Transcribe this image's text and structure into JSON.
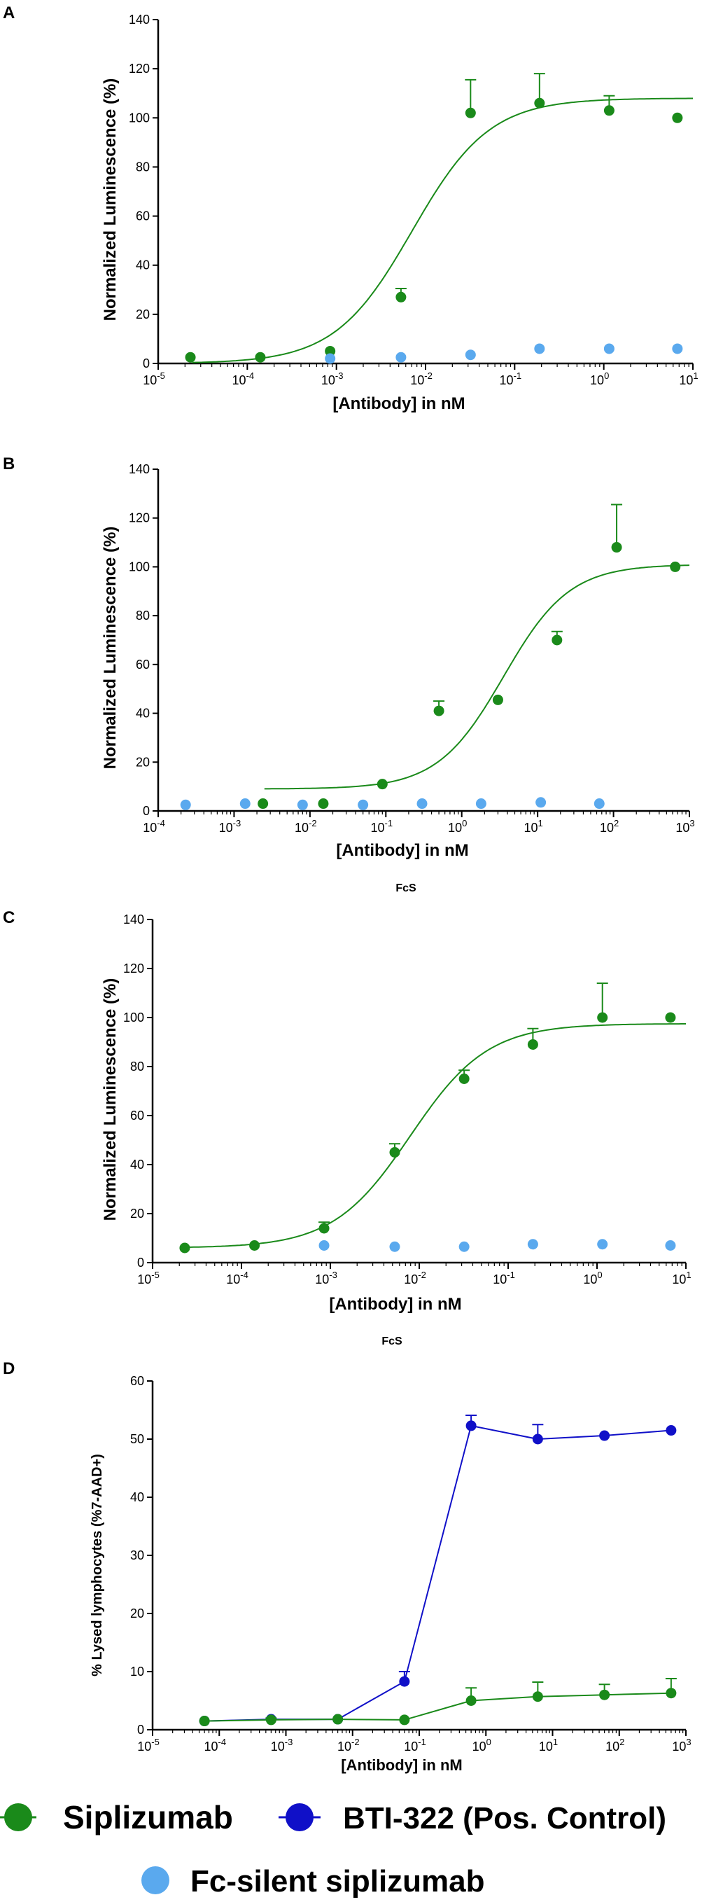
{
  "colors": {
    "siplizumab": "#1a8a1a",
    "fc_silent": "#5aa9ee",
    "bti322": "#1010c8",
    "axis": "#000000"
  },
  "chart_data": [
    {
      "panel": "A",
      "type": "scatter",
      "xscale": "log",
      "xlim": [
        1e-05,
        10
      ],
      "ylim": [
        0,
        140
      ],
      "xlabel": "[Antibody] in nM",
      "ylabel": "Normalized  Luminescence (%)",
      "x_ticks": [
        {
          "base": "10",
          "exp": "-5"
        },
        {
          "base": "10",
          "exp": "-4"
        },
        {
          "base": "10",
          "exp": "-3"
        },
        {
          "base": "10",
          "exp": "-2"
        },
        {
          "base": "10",
          "exp": "-1"
        },
        {
          "base": "10",
          "exp": "0"
        },
        {
          "base": "10",
          "exp": "1"
        }
      ],
      "y_ticks": [
        "0",
        "20",
        "40",
        "60",
        "80",
        "100",
        "120",
        "140"
      ],
      "series": [
        {
          "name": "Siplizumab",
          "color_key": "siplizumab",
          "x": [
            2.3e-05,
            0.00014,
            0.00085,
            0.0053,
            0.032,
            0.19,
            1.15,
            6.7
          ],
          "y": [
            2.5,
            2.5,
            5,
            27,
            102,
            106,
            103,
            100
          ],
          "err": [
            0,
            0,
            0,
            3.5,
            13.5,
            12,
            6,
            0
          ],
          "fit": {
            "bottom": 0,
            "top": 108,
            "logEC50": -2.15,
            "hill": 1.0
          }
        },
        {
          "name": "Fc-silent siplizumab",
          "color_key": "fc_silent",
          "x": [
            0.00085,
            0.0053,
            0.032,
            0.19,
            1.15,
            6.7
          ],
          "y": [
            2,
            2.5,
            3.5,
            6,
            6,
            6
          ],
          "err": [
            0,
            0,
            0,
            0,
            0,
            0
          ]
        }
      ]
    },
    {
      "panel": "B",
      "type": "scatter",
      "xscale": "log",
      "xlim": [
        0.0001,
        1000
      ],
      "ylim": [
        0,
        140
      ],
      "xlabel": "[Antibody] in nM",
      "ylabel": "Normalized  Luminescence (%)",
      "x_ticks": [
        {
          "base": "10",
          "exp": "-4"
        },
        {
          "base": "10",
          "exp": "-3"
        },
        {
          "base": "10",
          "exp": "-2"
        },
        {
          "base": "10",
          "exp": "-1"
        },
        {
          "base": "10",
          "exp": "0"
        },
        {
          "base": "10",
          "exp": "1"
        },
        {
          "base": "10",
          "exp": "2"
        },
        {
          "base": "10",
          "exp": "3"
        }
      ],
      "y_ticks": [
        "0",
        "20",
        "40",
        "60",
        "80",
        "100",
        "120",
        "140"
      ],
      "caption": "FcS",
      "series": [
        {
          "name": "Siplizumab",
          "color_key": "siplizumab",
          "x": [
            0.0024,
            0.015,
            0.09,
            0.5,
            3,
            18,
            110,
            650
          ],
          "y": [
            3,
            3,
            11,
            41,
            45.5,
            70,
            108,
            100
          ],
          "err": [
            0,
            0,
            0,
            4,
            0,
            3.5,
            17.5,
            0
          ],
          "fit": {
            "bottom": 9,
            "top": 101,
            "logEC50": 0.55,
            "hill": 1.0
          }
        },
        {
          "name": "Fc-silent siplizumab",
          "color_key": "fc_silent",
          "x": [
            0.00023,
            0.0014,
            0.008,
            0.05,
            0.3,
            1.8,
            11,
            65
          ],
          "y": [
            2.5,
            3,
            2.5,
            2.5,
            3,
            3,
            3.5,
            3
          ],
          "err": [
            0,
            0,
            0,
            0,
            0,
            0,
            0,
            0
          ]
        }
      ]
    },
    {
      "panel": "C",
      "type": "scatter",
      "xscale": "log",
      "xlim": [
        1e-05,
        10
      ],
      "ylim": [
        0,
        140
      ],
      "xlabel": "[Antibody] in nM",
      "ylabel": "Normalized  Luminescence (%)",
      "x_ticks": [
        {
          "base": "10",
          "exp": "-5"
        },
        {
          "base": "10",
          "exp": "-4"
        },
        {
          "base": "10",
          "exp": "-3"
        },
        {
          "base": "10",
          "exp": "-2"
        },
        {
          "base": "10",
          "exp": "-1"
        },
        {
          "base": "10",
          "exp": "0"
        },
        {
          "base": "10",
          "exp": "1"
        }
      ],
      "y_ticks": [
        "0",
        "20",
        "40",
        "60",
        "80",
        "100",
        "120",
        "140"
      ],
      "caption": "FcS",
      "series": [
        {
          "name": "Siplizumab",
          "color_key": "siplizumab",
          "x": [
            2.3e-05,
            0.00014,
            0.00085,
            0.0053,
            0.032,
            0.19,
            1.15,
            6.7
          ],
          "y": [
            6,
            7,
            14,
            45,
            75,
            89,
            100,
            100
          ],
          "err": [
            0,
            0,
            2.5,
            3.5,
            3.5,
            6.5,
            14,
            0
          ],
          "fit": {
            "bottom": 6,
            "top": 97.5,
            "logEC50": -2.1,
            "hill": 1.0
          }
        },
        {
          "name": "Fc-silent siplizumab",
          "color_key": "fc_silent",
          "x": [
            0.00085,
            0.0053,
            0.032,
            0.19,
            1.15,
            6.7
          ],
          "y": [
            7,
            6.5,
            6.5,
            7.5,
            7.5,
            7
          ],
          "err": [
            0,
            0,
            0,
            0,
            0,
            0
          ]
        }
      ]
    },
    {
      "panel": "D",
      "type": "line",
      "xscale": "log",
      "xlim": [
        1e-05,
        1000
      ],
      "ylim": [
        0,
        60
      ],
      "xlabel": "[Antibody] in nM",
      "ylabel": "% Lysed lymphocytes (%7-AAD+)",
      "x_ticks": [
        {
          "base": "10",
          "exp": "-5"
        },
        {
          "base": "10",
          "exp": "-4"
        },
        {
          "base": "10",
          "exp": "-3"
        },
        {
          "base": "10",
          "exp": "-2"
        },
        {
          "base": "10",
          "exp": "-1"
        },
        {
          "base": "10",
          "exp": "0"
        },
        {
          "base": "10",
          "exp": "1"
        },
        {
          "base": "10",
          "exp": "2"
        },
        {
          "base": "10",
          "exp": "3"
        }
      ],
      "y_ticks": [
        "0",
        "10",
        "20",
        "30",
        "40",
        "50",
        "60"
      ],
      "series": [
        {
          "name": "BTI-322 (Pos. Control)",
          "color_key": "bti322",
          "x": [
            6e-05,
            0.0006,
            0.006,
            0.06,
            0.6,
            6,
            60,
            600
          ],
          "y": [
            1.5,
            1.8,
            1.8,
            8.3,
            52.3,
            50,
            50.6,
            51.5
          ],
          "err": [
            0,
            0,
            0,
            1.7,
            1.8,
            2.5,
            0,
            0
          ]
        },
        {
          "name": "Siplizumab",
          "color_key": "siplizumab",
          "x": [
            6e-05,
            0.0006,
            0.006,
            0.06,
            0.6,
            6,
            60,
            600
          ],
          "y": [
            1.5,
            1.7,
            1.8,
            1.7,
            5,
            5.7,
            6,
            6.3
          ],
          "err": [
            0,
            0.3,
            0,
            0,
            2.2,
            2.5,
            1.8,
            2.5
          ]
        }
      ]
    }
  ],
  "legend": {
    "items": [
      {
        "label": "Siplizumab",
        "color_key": "siplizumab",
        "style": "line-dot"
      },
      {
        "label": "BTI-322 (Pos. Control)",
        "color_key": "bti322",
        "style": "line-dot"
      },
      {
        "label": "Fc-silent siplizumab",
        "color_key": "fc_silent",
        "style": "dot"
      }
    ]
  }
}
